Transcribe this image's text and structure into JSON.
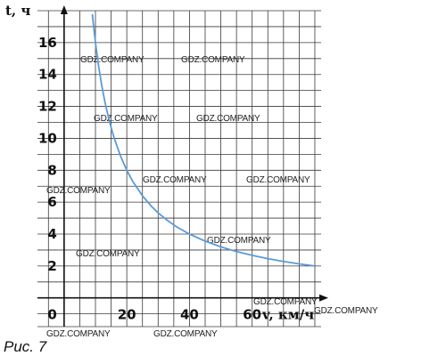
{
  "caption": "Рис. 7",
  "watermark_text": "GDZ.COMPANY",
  "watermark_count": 13,
  "chart_data": {
    "type": "line",
    "title": "",
    "xlabel": "v, км/ч",
    "ylabel": "t, ч",
    "xlim": [
      -8.5,
      82
    ],
    "ylim": [
      -1.8,
      18
    ],
    "grid": true,
    "x_ticks": [
      {
        "value": 0,
        "label": "0"
      },
      {
        "value": 20,
        "label": "20"
      },
      {
        "value": 40,
        "label": "40"
      },
      {
        "value": 60,
        "label": "60"
      }
    ],
    "y_ticks": [
      {
        "value": 2,
        "label": "2"
      },
      {
        "value": 4,
        "label": "4"
      },
      {
        "value": 6,
        "label": "6"
      },
      {
        "value": 8,
        "label": "8"
      },
      {
        "value": 10,
        "label": "10"
      },
      {
        "value": 12,
        "label": "12"
      },
      {
        "value": 14,
        "label": "14"
      },
      {
        "value": 16,
        "label": "16"
      }
    ],
    "line_color": "#5b9bd5",
    "series": [
      {
        "name": "",
        "x": [
          9,
          10,
          11,
          12,
          13,
          14,
          15,
          16,
          18,
          20,
          22,
          25,
          28,
          30,
          33,
          36,
          40,
          45,
          50,
          55,
          60,
          65,
          70,
          75,
          80
        ],
        "y": [
          17.78,
          16,
          14.55,
          13.33,
          12.31,
          11.43,
          10.67,
          10,
          8.89,
          8,
          7.27,
          6.4,
          5.71,
          5.33,
          4.85,
          4.44,
          4,
          3.56,
          3.2,
          2.91,
          2.67,
          2.46,
          2.29,
          2.13,
          2
        ]
      }
    ]
  }
}
